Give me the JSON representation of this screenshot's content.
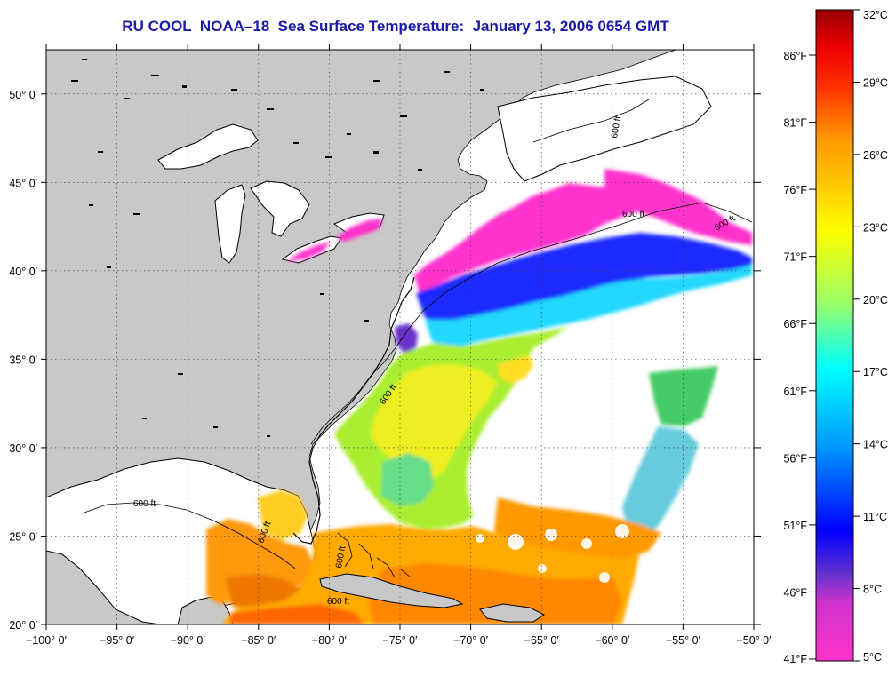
{
  "title": "RU COOL  NOAA–18  Sea Surface Temperature:  January 13, 2006 0654 GMT",
  "map": {
    "lon_range": [
      -100,
      -50
    ],
    "lat_range": [
      20,
      52.5
    ],
    "lon_ticks": [
      {
        "value": -100,
        "label": "−100° 0′"
      },
      {
        "value": -95,
        "label": "−95° 0′"
      },
      {
        "value": -90,
        "label": "−90° 0′"
      },
      {
        "value": -85,
        "label": "−85° 0′"
      },
      {
        "value": -80,
        "label": "−80° 0′"
      },
      {
        "value": -75,
        "label": "−75° 0′"
      },
      {
        "value": -70,
        "label": "−70° 0′"
      },
      {
        "value": -65,
        "label": "−65° 0′"
      },
      {
        "value": -60,
        "label": "−60° 0′"
      },
      {
        "value": -55,
        "label": "−55° 0′"
      },
      {
        "value": -50,
        "label": "−50° 0′"
      }
    ],
    "lat_ticks": [
      {
        "value": 20,
        "label": "20° 0′"
      },
      {
        "value": 25,
        "label": "25° 0′"
      },
      {
        "value": 30,
        "label": "30° 0′"
      },
      {
        "value": 35,
        "label": "35° 0′"
      },
      {
        "value": 40,
        "label": "40° 0′"
      },
      {
        "value": 45,
        "label": "45° 0′"
      },
      {
        "value": 50,
        "label": "50° 0′"
      }
    ],
    "contour_labels": [
      "600 ft",
      "600 ft",
      "600 ft",
      "600 ft",
      "600 ft",
      "600 ft",
      "600 ft",
      "600 ft"
    ],
    "grid": true,
    "grid_style": "dotted"
  },
  "colorbar": {
    "colors": [
      "#ff33cc",
      "#6a33cc",
      "#0000ff",
      "#00ffff",
      "#ffff00",
      "#ff9900",
      "#ff0000",
      "#990000"
    ],
    "celsius_labels": [
      "32°C",
      "29°C",
      "26°C",
      "23°C",
      "20°C",
      "17°C",
      "14°C",
      "11°C",
      "8°C",
      "5°C"
    ],
    "fahrenheit_labels": [
      "86°F",
      "81°F",
      "76°F",
      "71°F",
      "66°F",
      "61°F",
      "56°F",
      "51°F",
      "46°F",
      "41°F"
    ]
  },
  "colors": {
    "land": "#c8c8c8",
    "cloud": "#ffffff",
    "title": "#1a1aa8"
  }
}
